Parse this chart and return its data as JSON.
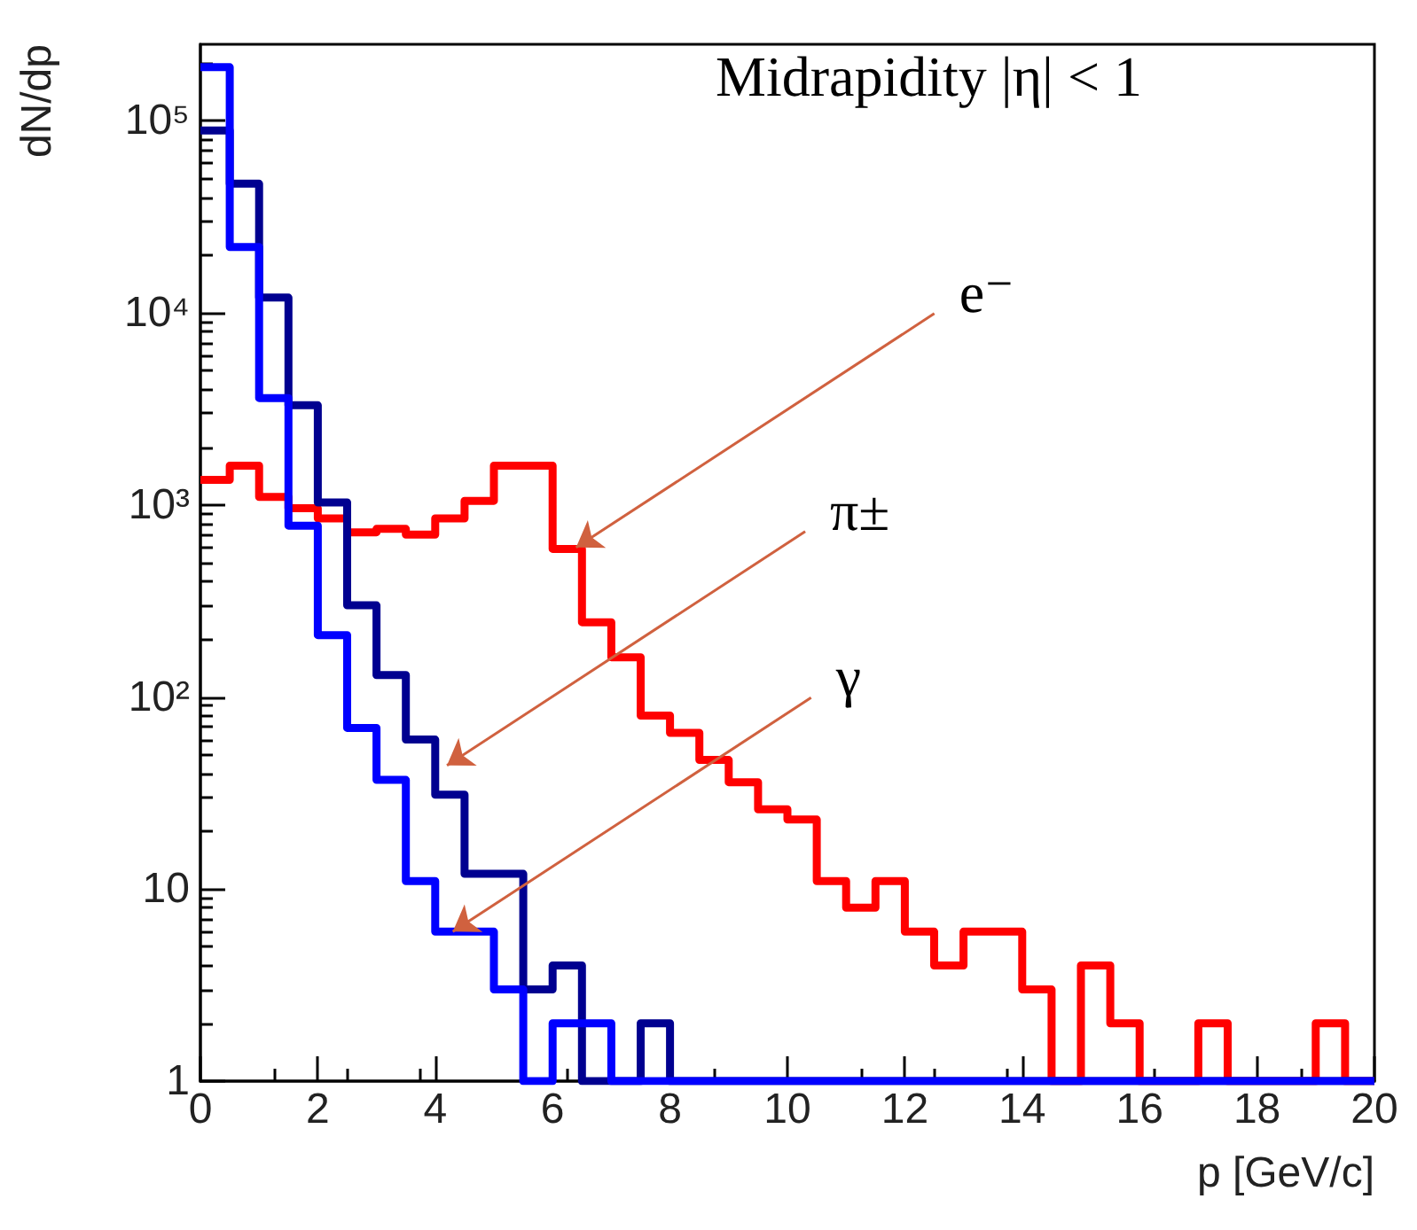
{
  "chart_data": {
    "type": "histogram",
    "title": "Midrapidity |η| < 1",
    "xlabel": "p [GeV/c]",
    "ylabel": "dN/dp",
    "bins": [
      0,
      0.5,
      1,
      1.5,
      2,
      2.5,
      3,
      3.5,
      4,
      4.5,
      5,
      5.5,
      6,
      6.5,
      7,
      7.5,
      8,
      8.5,
      9,
      9.5,
      10,
      10.5,
      11,
      11.5,
      12,
      12.5,
      13,
      13.5,
      14,
      14.5,
      15,
      15.5,
      16,
      16.5,
      17,
      17.5,
      18,
      18.5,
      19,
      19.5,
      20
    ],
    "series": [
      {
        "color": "#ff0000",
        "values": [
          1350,
          1600,
          1100,
          960,
          850,
          720,
          750,
          700,
          850,
          1050,
          1600,
          1600,
          590,
          245,
          161,
          80,
          65,
          47,
          36,
          26,
          23,
          11,
          8,
          11,
          6,
          4,
          6,
          6,
          3,
          1,
          4,
          2,
          1,
          1,
          2,
          1,
          1,
          1,
          2,
          1
        ]
      },
      {
        "color": "#000090",
        "values": [
          89000,
          47000,
          12000,
          3300,
          1030,
          300,
          130,
          60,
          31,
          12,
          12,
          3,
          4,
          1,
          1,
          2,
          1,
          1,
          1,
          1,
          1,
          1,
          1,
          1,
          1,
          1,
          1,
          1,
          1,
          1,
          1,
          1,
          1,
          1,
          1,
          1,
          1,
          1,
          1,
          1
        ]
      },
      {
        "color": "#0000ff",
        "values": [
          190000,
          22000,
          3600,
          780,
          210,
          69,
          37,
          11,
          6,
          6,
          3,
          1,
          2,
          2,
          1,
          1,
          1,
          1,
          1,
          1,
          1,
          1,
          1,
          1,
          1,
          1,
          1,
          1,
          1,
          1,
          1,
          1,
          1,
          1,
          1,
          1,
          1,
          1,
          1,
          1
        ]
      }
    ],
    "annotations": [
      {
        "text": "e⁻",
        "x": 6.4,
        "y": 600
      },
      {
        "text": "π±",
        "x": 4.2,
        "y": 44
      },
      {
        "text": "γ",
        "x": 4.3,
        "y": 6
      }
    ],
    "xlim": [
      0,
      20
    ],
    "xticks": [
      0,
      2,
      4,
      6,
      8,
      10,
      12,
      14,
      16,
      18,
      20
    ],
    "ylim": [
      1,
      250000
    ],
    "yticks": [
      1,
      10,
      {
        "value": 100,
        "label": "10²"
      },
      {
        "value": 1000,
        "label": "10³"
      },
      {
        "value": 10000,
        "label": "10⁴"
      },
      {
        "value": 100000,
        "label": "10⁵"
      }
    ],
    "log": "y",
    "grid": false
  }
}
